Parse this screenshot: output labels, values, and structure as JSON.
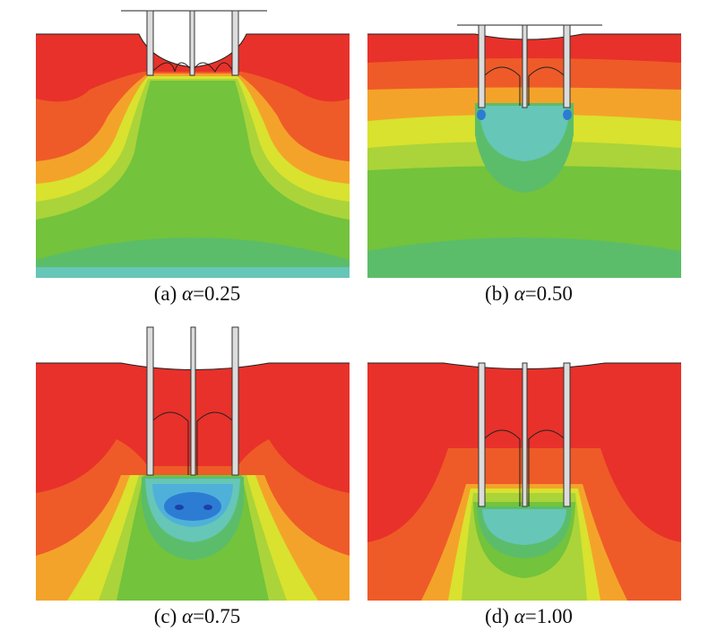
{
  "figure": {
    "panels": [
      {
        "tag": "(a)",
        "symbol": "α",
        "value": "=0.25"
      },
      {
        "tag": "(b)",
        "symbol": "α",
        "value": "=0.50"
      },
      {
        "tag": "(c)",
        "symbol": "α",
        "value": "=0.75"
      },
      {
        "tag": "(d)",
        "symbol": "α",
        "value": "=1.00"
      }
    ],
    "colors": {
      "red": "#e8312a",
      "red_orange": "#ee5b28",
      "orange": "#f4a32a",
      "yellow": "#d9e22e",
      "yellow_green": "#aad43a",
      "green": "#73c33c",
      "light_green": "#5bbd6a",
      "cyan": "#66c6b8",
      "light_blue": "#4fb0d9",
      "blue": "#2c7cd3",
      "dark_blue": "#1d3fa8",
      "pile": "#dcdcdc"
    }
  }
}
